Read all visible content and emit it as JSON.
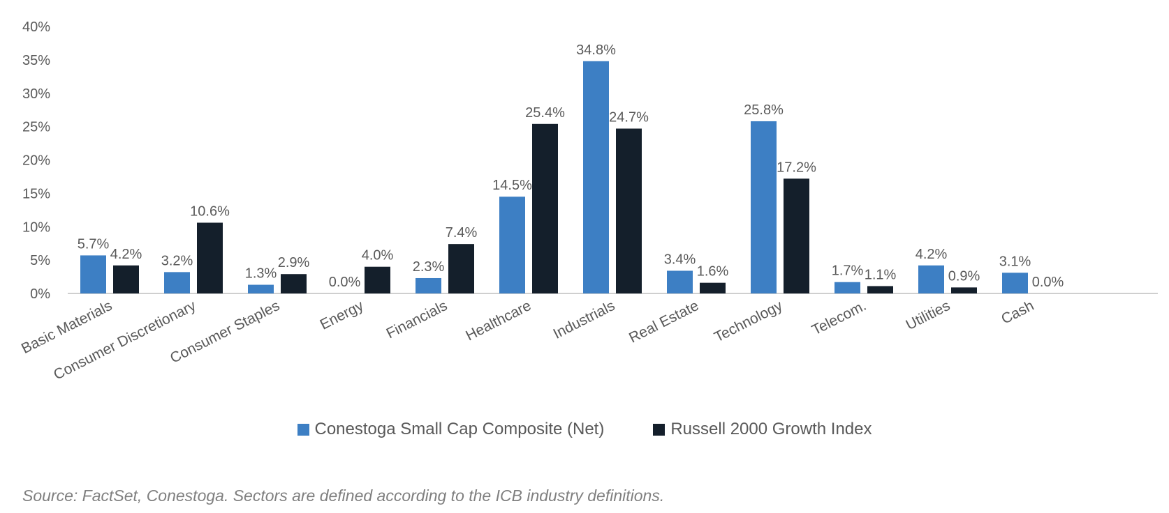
{
  "chart_data": {
    "type": "bar",
    "categories": [
      "Basic Materials",
      "Consumer Discretionary",
      "Consumer Staples",
      "Energy",
      "Financials",
      "Healthcare",
      "Industrials",
      "Real Estate",
      "Technology",
      "Telecom.",
      "Utilities",
      "Cash"
    ],
    "series": [
      {
        "name": "Conestoga Small Cap Composite (Net)",
        "color": "#3d7fc4",
        "values": [
          5.7,
          3.2,
          1.3,
          0.0,
          2.3,
          14.5,
          34.8,
          3.4,
          25.8,
          1.7,
          4.2,
          3.1
        ],
        "labels": [
          "5.7%",
          "3.2%",
          "1.3%",
          "0.0%",
          "2.3%",
          "14.5%",
          "34.8%",
          "3.4%",
          "25.8%",
          "1.7%",
          "4.2%",
          "3.1%"
        ]
      },
      {
        "name": "Russell 2000 Growth Index",
        "color": "#141f2b",
        "values": [
          4.2,
          10.6,
          2.9,
          4.0,
          7.4,
          25.4,
          24.7,
          1.6,
          17.2,
          1.1,
          0.9,
          0.0
        ],
        "labels": [
          "4.2%",
          "10.6%",
          "2.9%",
          "4.0%",
          "7.4%",
          "25.4%",
          "24.7%",
          "1.6%",
          "17.2%",
          "1.1%",
          "0.9%",
          "0.0%"
        ]
      }
    ],
    "ylim": [
      0,
      40
    ],
    "yticks": [
      "0%",
      "5%",
      "10%",
      "15%",
      "20%",
      "25%",
      "30%",
      "35%",
      "40%"
    ],
    "legend_position": "bottom",
    "grid": false
  },
  "source_text": "Source: FactSet, Conestoga. Sectors are defined according to the ICB industry definitions."
}
